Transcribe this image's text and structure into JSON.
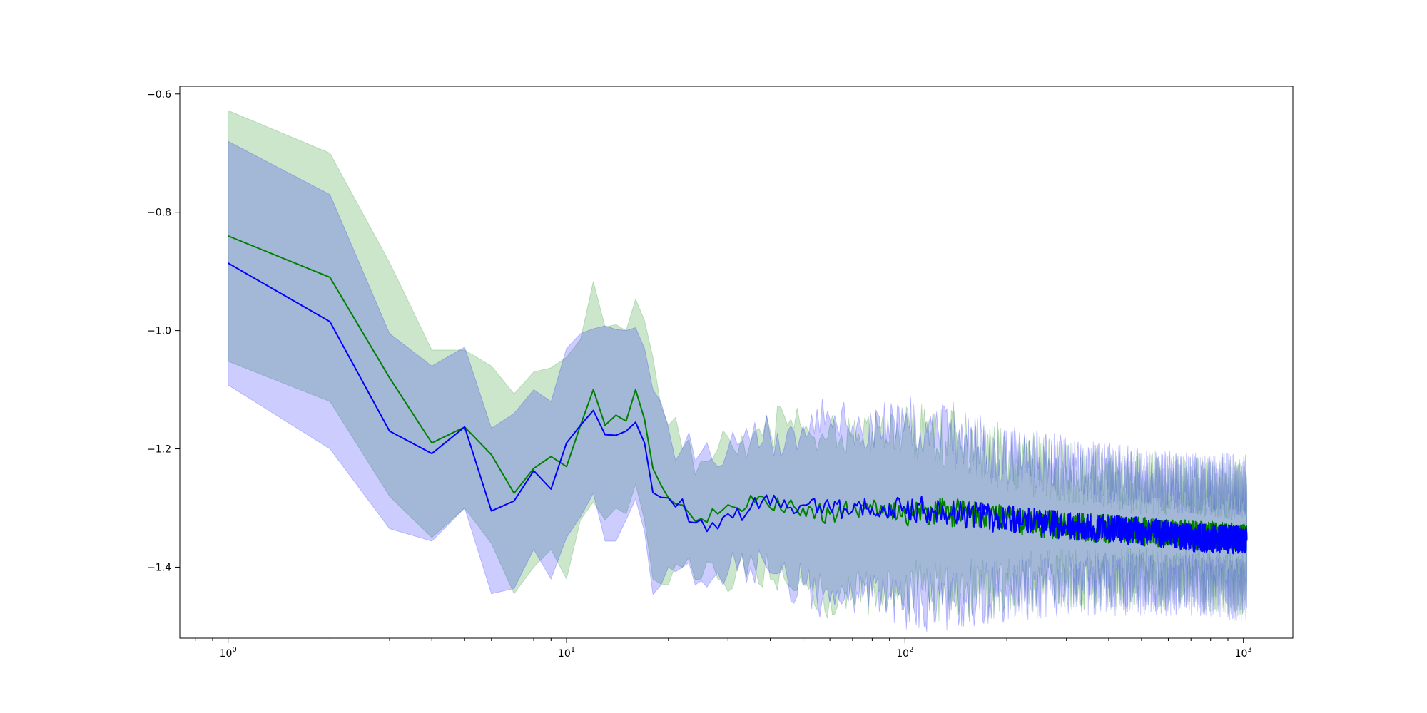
{
  "chart_data": {
    "type": "line",
    "title": "",
    "xlabel": "",
    "ylabel": "",
    "xscale": "log",
    "xlim": [
      0.72,
      1400
    ],
    "ylim": [
      -1.52,
      -0.587
    ],
    "grid": false,
    "legend": "none",
    "xticks": [
      {
        "value": 1,
        "base": "10",
        "exp": "0"
      },
      {
        "value": 10,
        "base": "10",
        "exp": "1"
      },
      {
        "value": 100,
        "base": "10",
        "exp": "2"
      },
      {
        "value": 1000,
        "base": "10",
        "exp": "3"
      }
    ],
    "yticks": [
      {
        "value": -0.6,
        "label": "−0.6"
      },
      {
        "value": -0.8,
        "label": "−0.8"
      },
      {
        "value": -1.0,
        "label": "−1.0"
      },
      {
        "value": -1.2,
        "label": "−1.2"
      },
      {
        "value": -1.4,
        "label": "−1.4"
      }
    ],
    "series": [
      {
        "color": "#008000",
        "band_color": "#008000",
        "band_opacity": 0.2,
        "points": [
          [
            1,
            -0.84,
            -0.628,
            -1.052
          ],
          [
            2,
            -0.91,
            -0.7,
            -1.12
          ],
          [
            3,
            -1.08,
            -0.885,
            -1.28
          ],
          [
            4,
            -1.19,
            -1.033,
            -1.35
          ],
          [
            5,
            -1.163,
            -1.033,
            -1.3
          ],
          [
            6,
            -1.21,
            -1.06,
            -1.36
          ],
          [
            7,
            -1.275,
            -1.107,
            -1.445
          ],
          [
            8,
            -1.233,
            -1.07,
            -1.4
          ],
          [
            9,
            -1.213,
            -1.063,
            -1.37
          ],
          [
            10,
            -1.23,
            -1.045,
            -1.42
          ],
          [
            11,
            -1.16,
            -1.015,
            -1.32
          ],
          [
            12,
            -1.1,
            -0.917,
            -1.29
          ],
          [
            13,
            -1.16,
            -0.994,
            -1.32
          ],
          [
            14,
            -1.143,
            -0.99,
            -1.3
          ],
          [
            15,
            -1.153,
            -1.0,
            -1.31
          ],
          [
            16,
            -1.1,
            -0.947,
            -1.26
          ],
          [
            17,
            -1.15,
            -0.983,
            -1.32
          ],
          [
            18,
            -1.233,
            -1.045,
            -1.42
          ],
          [
            20,
            -1.283,
            -1.16,
            -1.43
          ],
          [
            22,
            -1.295,
            -1.2,
            -1.4
          ],
          [
            25,
            -1.318,
            -1.22,
            -1.42
          ],
          [
            28,
            -1.31,
            -1.2,
            -1.42
          ],
          [
            32,
            -1.3,
            -1.21,
            -1.4
          ],
          [
            36,
            -1.29,
            -1.17,
            -1.4
          ],
          [
            40,
            -1.3,
            -1.17,
            -1.42
          ],
          [
            45,
            -1.295,
            -1.16,
            -1.43
          ],
          [
            50,
            -1.3,
            -1.17,
            -1.43
          ],
          [
            60,
            -1.31,
            -1.16,
            -1.45
          ],
          [
            70,
            -1.305,
            -1.18,
            -1.45
          ],
          [
            80,
            -1.3,
            -1.17,
            -1.44
          ],
          [
            100,
            -1.31,
            -1.17,
            -1.44
          ],
          [
            120,
            -1.305,
            -1.17,
            -1.44
          ],
          [
            150,
            -1.31,
            -1.19,
            -1.44
          ],
          [
            200,
            -1.32,
            -1.22,
            -1.43
          ],
          [
            300,
            -1.33,
            -1.24,
            -1.42
          ],
          [
            500,
            -1.34,
            -1.26,
            -1.42
          ],
          [
            700,
            -1.345,
            -1.26,
            -1.42
          ],
          [
            1024,
            -1.35,
            -1.27,
            -1.43
          ]
        ]
      },
      {
        "color": "#0000ff",
        "band_color": "#0000ff",
        "band_opacity": 0.2,
        "points": [
          [
            1,
            -0.886,
            -0.68,
            -1.092
          ],
          [
            2,
            -0.985,
            -0.77,
            -1.2
          ],
          [
            3,
            -1.17,
            -1.005,
            -1.335
          ],
          [
            4,
            -1.208,
            -1.06,
            -1.356
          ],
          [
            5,
            -1.163,
            -1.028,
            -1.3
          ],
          [
            6,
            -1.305,
            -1.165,
            -1.445
          ],
          [
            7,
            -1.288,
            -1.14,
            -1.436
          ],
          [
            8,
            -1.237,
            -1.1,
            -1.37
          ],
          [
            9,
            -1.268,
            -1.12,
            -1.42
          ],
          [
            10,
            -1.19,
            -1.03,
            -1.35
          ],
          [
            11,
            -1.16,
            -1.005,
            -1.315
          ],
          [
            12,
            -1.135,
            -0.997,
            -1.275
          ],
          [
            13,
            -1.176,
            -0.992,
            -1.356
          ],
          [
            14,
            -1.177,
            -0.998,
            -1.356
          ],
          [
            15,
            -1.17,
            -1.0,
            -1.32
          ],
          [
            16,
            -1.155,
            -0.995,
            -1.285
          ],
          [
            17,
            -1.19,
            -1.03,
            -1.34
          ],
          [
            18,
            -1.274,
            -1.1,
            -1.446
          ],
          [
            20,
            -1.283,
            -1.165,
            -1.4
          ],
          [
            22,
            -1.285,
            -1.2,
            -1.4
          ],
          [
            24,
            -1.325,
            -1.22,
            -1.43
          ],
          [
            27,
            -1.325,
            -1.22,
            -1.42
          ],
          [
            30,
            -1.31,
            -1.2,
            -1.41
          ],
          [
            35,
            -1.3,
            -1.19,
            -1.4
          ],
          [
            40,
            -1.295,
            -1.18,
            -1.41
          ],
          [
            45,
            -1.3,
            -1.17,
            -1.42
          ],
          [
            50,
            -1.295,
            -1.16,
            -1.43
          ],
          [
            60,
            -1.3,
            -1.15,
            -1.46
          ],
          [
            70,
            -1.305,
            -1.16,
            -1.45
          ],
          [
            80,
            -1.3,
            -1.16,
            -1.45
          ],
          [
            100,
            -1.3,
            -1.15,
            -1.46
          ],
          [
            120,
            -1.3,
            -1.16,
            -1.46
          ],
          [
            150,
            -1.31,
            -1.18,
            -1.45
          ],
          [
            200,
            -1.32,
            -1.21,
            -1.44
          ],
          [
            300,
            -1.33,
            -1.23,
            -1.43
          ],
          [
            500,
            -1.34,
            -1.25,
            -1.43
          ],
          [
            700,
            -1.35,
            -1.26,
            -1.43
          ],
          [
            1024,
            -1.355,
            -1.26,
            -1.44
          ]
        ]
      }
    ]
  }
}
